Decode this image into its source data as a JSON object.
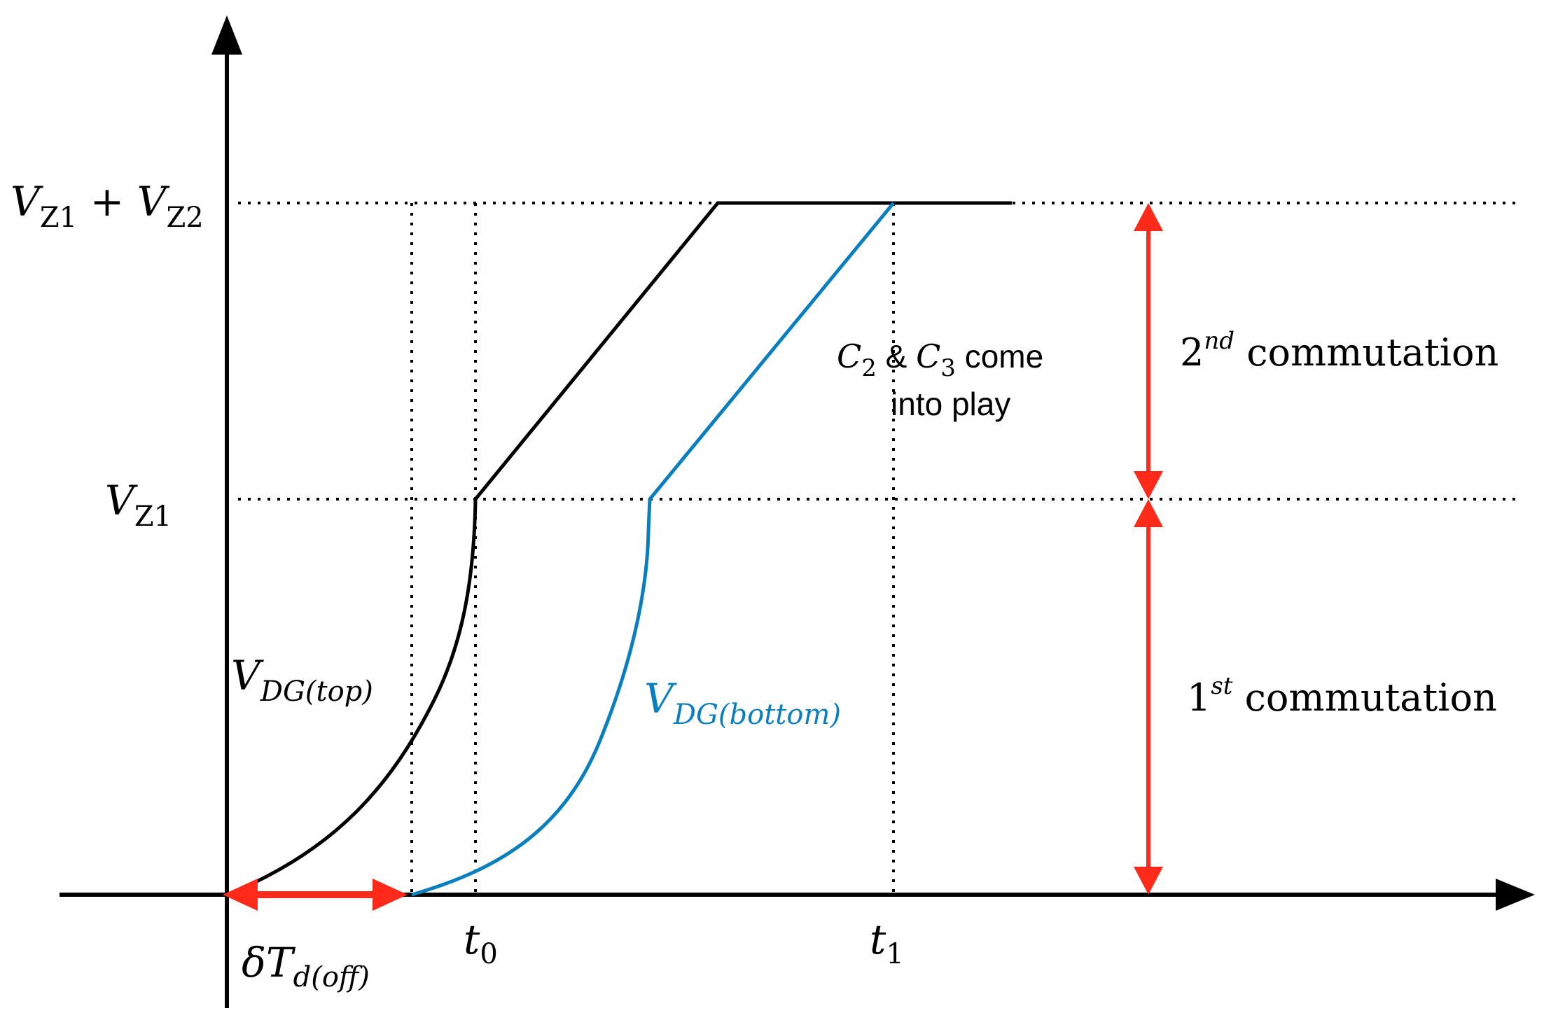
{
  "labels": {
    "vz1_plus_vz2": {
      "a": "V",
      "a_sub": "Z1",
      "plus": " + ",
      "b": "V",
      "b_sub": "Z2"
    },
    "vz1": {
      "main": "V",
      "sub": "Z1"
    },
    "vdg_top": {
      "main": "V",
      "sub": "DG(top)"
    },
    "vdg_bottom": {
      "main": "V",
      "sub": "DG(bottom)"
    },
    "t0": {
      "main": "t",
      "sub": "0"
    },
    "t1": {
      "main": "t",
      "sub": "1"
    },
    "delta_t": {
      "main": "δT",
      "sub": "d(off)"
    },
    "c2c3_line1": {
      "c2": "C",
      "c2_sub": "2",
      "amp": " & ",
      "c3": "C",
      "c3_sub": "3",
      "rest": " come"
    },
    "c2c3_line2": "into play",
    "second_commutation": {
      "num": "2",
      "sup": "nd",
      "text": " commutation"
    },
    "first_commutation": {
      "num": "1",
      "sup": "st",
      "text": " commutation"
    }
  },
  "colors": {
    "axis": "#000000",
    "top_curve": "#000000",
    "bottom_curve": "#0a7fc0",
    "arrows": "#ff2a1a",
    "guides": "#000000"
  }
}
